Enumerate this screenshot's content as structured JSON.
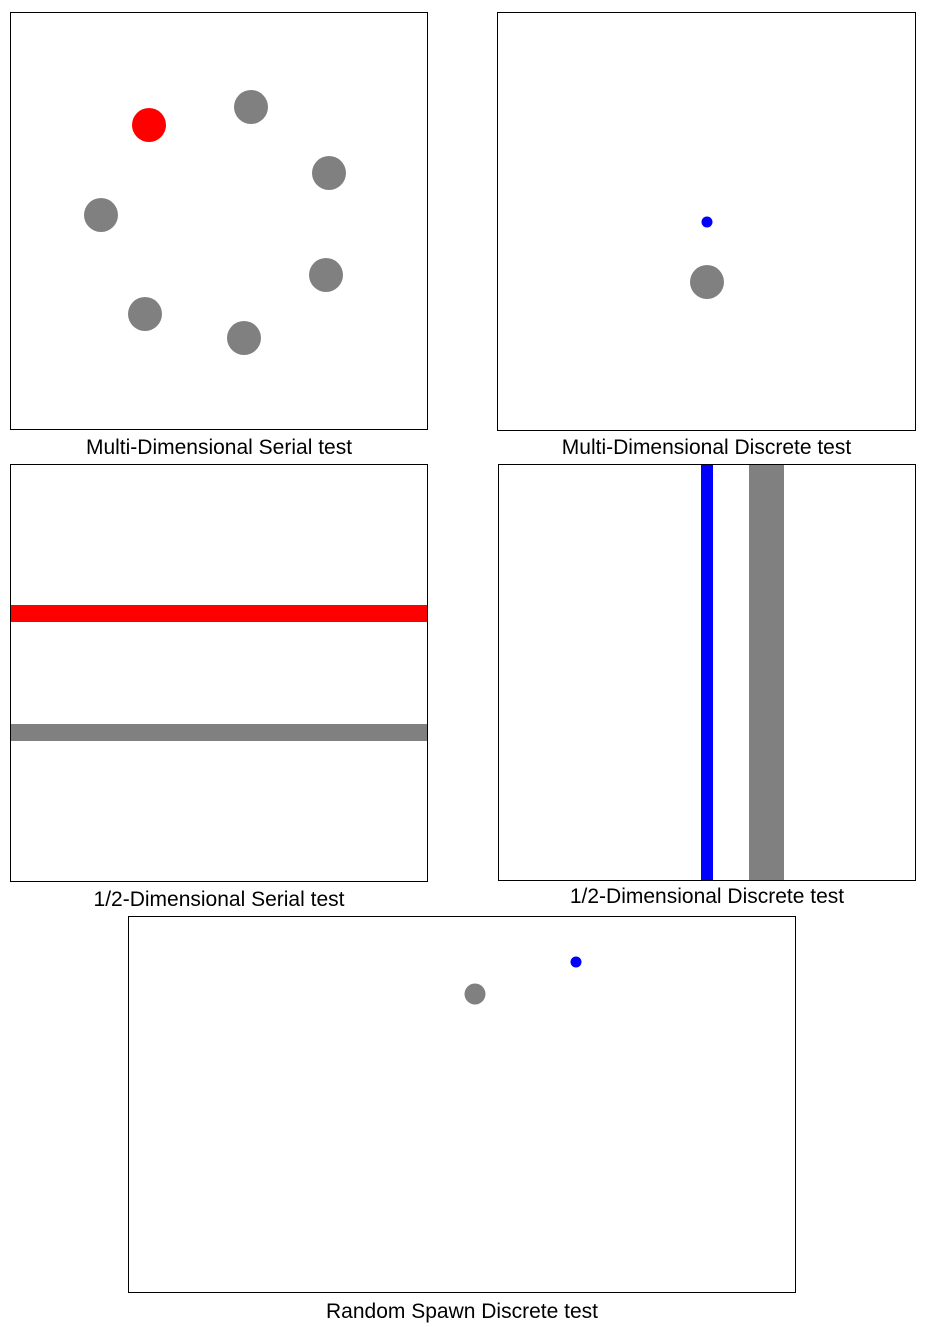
{
  "colors": {
    "target": "#ff0000",
    "cursor": "#0000ff",
    "distractor": "#808080",
    "border": "#000000",
    "background": "#ffffff"
  },
  "panels": [
    {
      "caption": "Multi-Dimensional Serial test"
    },
    {
      "caption": "Multi-Dimensional Discrete test"
    },
    {
      "caption": "1/2-Dimensional Serial test"
    },
    {
      "caption": "1/2-Dimensional Discrete test"
    },
    {
      "caption": "Random Spawn Discrete test"
    }
  ]
}
